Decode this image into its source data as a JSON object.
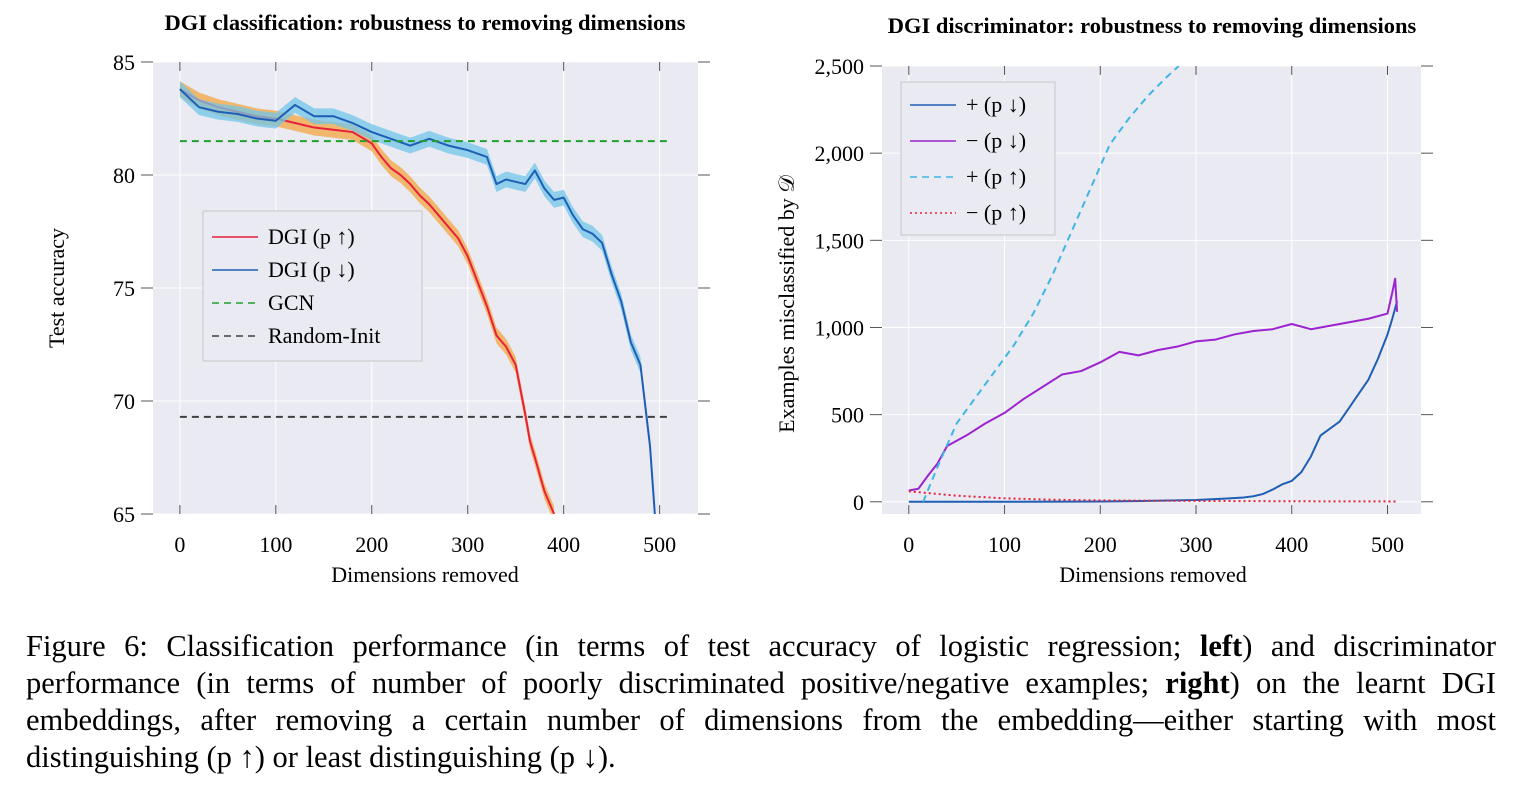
{
  "chart_data": [
    {
      "type": "line",
      "title": "DGI classification: robustness to removing dimensions",
      "xlabel": "Dimensions removed",
      "ylabel": "Test accuracy",
      "xlim": [
        -28,
        540
      ],
      "ylim": [
        65,
        85
      ],
      "xticks": [
        0,
        100,
        200,
        300,
        400,
        500
      ],
      "yticks": [
        65,
        70,
        75,
        80,
        85
      ],
      "legend_position": "center-left",
      "series": [
        {
          "name": "DGI (p ↑)",
          "color": "#e8203c",
          "band_color": "#f3a640",
          "band": 0.35,
          "style": "solid",
          "x": [
            0,
            20,
            40,
            60,
            80,
            100,
            120,
            140,
            160,
            180,
            200,
            210,
            220,
            230,
            240,
            250,
            260,
            270,
            280,
            290,
            300,
            310,
            320,
            330,
            340,
            350,
            360,
            365,
            370,
            380,
            390
          ],
          "y": [
            83.8,
            83.3,
            83.0,
            82.8,
            82.6,
            82.5,
            82.3,
            82.1,
            82.0,
            81.9,
            81.4,
            80.8,
            80.3,
            80.0,
            79.6,
            79.1,
            78.7,
            78.2,
            77.7,
            77.2,
            76.4,
            75.3,
            74.2,
            72.9,
            72.4,
            71.6,
            69.4,
            68.2,
            67.5,
            66.0,
            65.0
          ]
        },
        {
          "name": "DGI (p ↓)",
          "color": "#1e5fb5",
          "band_color": "#70c6ea",
          "band": 0.35,
          "style": "solid",
          "x": [
            0,
            20,
            40,
            60,
            80,
            100,
            120,
            140,
            160,
            180,
            200,
            220,
            240,
            260,
            280,
            300,
            320,
            330,
            340,
            360,
            370,
            380,
            390,
            400,
            410,
            420,
            430,
            440,
            450,
            460,
            470,
            480,
            490,
            495
          ],
          "y": [
            83.8,
            83.0,
            82.8,
            82.7,
            82.5,
            82.4,
            83.1,
            82.6,
            82.6,
            82.3,
            81.9,
            81.6,
            81.3,
            81.6,
            81.3,
            81.1,
            80.8,
            79.6,
            79.8,
            79.6,
            80.2,
            79.4,
            78.9,
            79.0,
            78.2,
            77.6,
            77.4,
            77.0,
            75.6,
            74.4,
            72.6,
            71.6,
            68.0,
            65.0
          ]
        },
        {
          "name": "GCN",
          "color": "#21a030",
          "style": "dashed",
          "x": [
            0,
            512
          ],
          "y": [
            81.5,
            81.5
          ]
        },
        {
          "name": "Random-Init",
          "color": "#404040",
          "style": "dashed",
          "x": [
            0,
            512
          ],
          "y": [
            69.3,
            69.3
          ]
        }
      ]
    },
    {
      "type": "line",
      "title": "DGI discriminator: robustness to removing dimensions",
      "xlabel": "Dimensions removed",
      "ylabel": "Examples misclassified by 𝒟",
      "xlim": [
        -28,
        535
      ],
      "ylim": [
        -70,
        2500
      ],
      "xticks": [
        0,
        100,
        200,
        300,
        400,
        500
      ],
      "yticks": [
        0,
        500,
        1000,
        1500,
        2000,
        2500
      ],
      "ytick_labels": [
        "0",
        "500",
        "1,000",
        "1,500",
        "2,000",
        "2,500"
      ],
      "legend_position": "top-left",
      "series": [
        {
          "name": "+ (p ↓)",
          "color": "#1e5fb5",
          "style": "solid",
          "x": [
            0,
            100,
            200,
            250,
            300,
            330,
            350,
            360,
            370,
            380,
            390,
            400,
            410,
            420,
            430,
            440,
            450,
            460,
            470,
            480,
            490,
            500,
            505,
            510
          ],
          "y": [
            0,
            0,
            2,
            5,
            10,
            18,
            25,
            32,
            45,
            70,
            100,
            120,
            170,
            260,
            380,
            420,
            460,
            540,
            620,
            700,
            820,
            960,
            1050,
            1150
          ]
        },
        {
          "name": "− (p ↓)",
          "color": "#9b24d0",
          "style": "solid",
          "x": [
            0,
            10,
            20,
            30,
            40,
            60,
            80,
            100,
            120,
            140,
            160,
            180,
            200,
            220,
            240,
            260,
            280,
            300,
            320,
            340,
            360,
            380,
            400,
            420,
            440,
            460,
            480,
            500,
            505,
            508,
            510
          ],
          "y": [
            65,
            75,
            150,
            220,
            320,
            380,
            450,
            510,
            590,
            660,
            730,
            750,
            800,
            860,
            840,
            870,
            890,
            920,
            930,
            960,
            980,
            990,
            1020,
            990,
            1010,
            1030,
            1050,
            1080,
            1200,
            1280,
            1090
          ]
        },
        {
          "name": "+ (p ↑)",
          "color": "#3fb6e6",
          "style": "dashed",
          "x": [
            15,
            30,
            50,
            70,
            90,
            110,
            130,
            150,
            170,
            190,
            210,
            230,
            250,
            270,
            282
          ],
          "y": [
            0,
            200,
            450,
            600,
            750,
            900,
            1080,
            1300,
            1550,
            1800,
            2050,
            2200,
            2330,
            2440,
            2500
          ]
        },
        {
          "name": "− (p ↑)",
          "color": "#e8203c",
          "style": "dotted",
          "x": [
            0,
            50,
            100,
            150,
            200,
            300,
            400,
            510
          ],
          "y": [
            60,
            35,
            20,
            12,
            8,
            5,
            3,
            2
          ]
        }
      ]
    }
  ],
  "caption": {
    "prefix": "Figure 6:  Classification performance (in terms of test accuracy of logistic regression; ",
    "bold1": "left",
    "middle": ") and discriminator performance (in terms of number of poorly discriminated positive/negative examples; ",
    "bold2": "right",
    "suffix": ") on the learnt DGI embeddings, after removing a certain number of dimensions from the embedding—either starting with most distinguishing (p ↑) or least distinguishing (p ↓)."
  }
}
